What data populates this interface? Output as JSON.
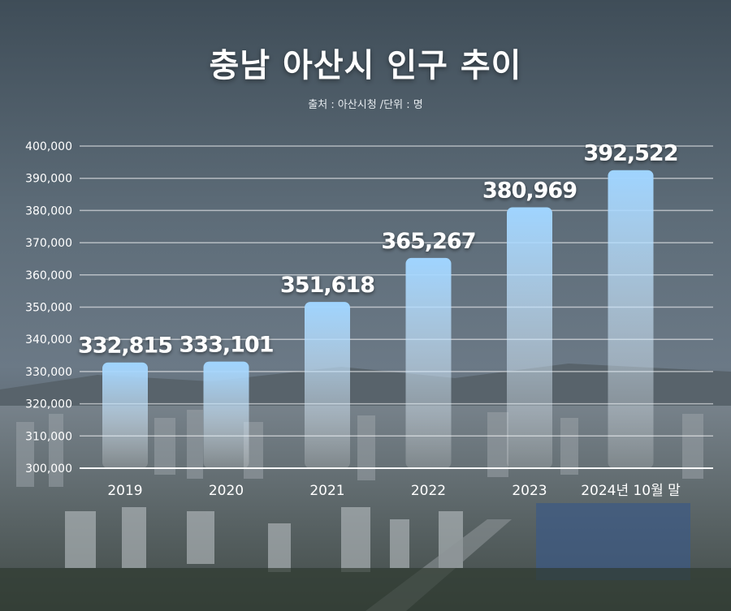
{
  "title": "충남 아산시 인구 추이",
  "subtitle": "출처 : 아산시청 /단위 : 명",
  "colors": {
    "bar_top": "#9fd4ff",
    "bar_bottom": "#ffffff",
    "grid": "#ffffff",
    "text": "#ffffff"
  },
  "chart_data": {
    "type": "bar",
    "title": "충남 아산시 인구 추이",
    "source_note": "출처 : 아산시청 /단위 : 명",
    "categories": [
      "2019",
      "2020",
      "2021",
      "2022",
      "2023",
      "2024년 10월 말"
    ],
    "values": [
      332815,
      333101,
      351618,
      365267,
      380969,
      392522
    ],
    "value_labels": [
      "332,815",
      "333,101",
      "351,618",
      "365,267",
      "380,969",
      "392,522"
    ],
    "ylim": [
      300000,
      400000
    ],
    "yticks": [
      300000,
      310000,
      320000,
      330000,
      340000,
      350000,
      360000,
      370000,
      380000,
      390000,
      400000
    ],
    "ytick_labels": [
      "300,000",
      "310,000",
      "320,000",
      "330,000",
      "340,000",
      "350,000",
      "360,000",
      "370,000",
      "380,000",
      "390,000",
      "400,000"
    ],
    "grid": true,
    "legend": "none"
  }
}
